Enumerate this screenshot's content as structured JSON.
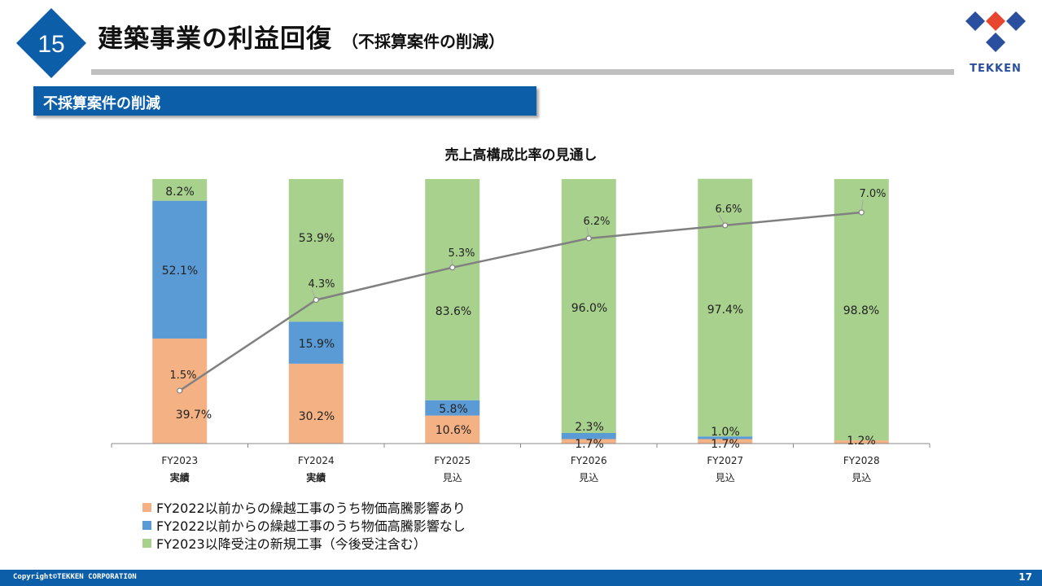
{
  "slide_number": "15",
  "title": "建築事業の利益回復",
  "subtitle": "（不採算案件の削減）",
  "logo_text": "TEKKEN",
  "section_label": "不採算案件の削減",
  "colors": {
    "brand_blue": "#0c5ea9",
    "series_orange": "#f4b183",
    "series_blue": "#5b9bd5",
    "series_green": "#a9d18e",
    "line_gray": "#808080"
  },
  "chart_data": {
    "type": "bar",
    "stacked": true,
    "title": "売上高構成比率の見通し",
    "categories": [
      "FY2023",
      "FY2024",
      "FY2025",
      "FY2026",
      "FY2027",
      "FY2028"
    ],
    "category_sublabels": [
      "実績",
      "実績",
      "見込",
      "見込",
      "見込",
      "見込"
    ],
    "series": [
      {
        "name": "FY2022以前からの繰越工事のうち物価高騰影響あり",
        "values": [
          39.7,
          30.2,
          10.6,
          1.7,
          1.7,
          1.2
        ],
        "labels": [
          "39.7%",
          "30.2%",
          "10.6%",
          "1.7%",
          "1.7%",
          "1.2%"
        ]
      },
      {
        "name": "FY2022以前からの繰越工事のうち物価高騰影響なし",
        "values": [
          52.1,
          15.9,
          5.8,
          2.3,
          1.0,
          0.0
        ],
        "labels": [
          "52.1%",
          "15.9%",
          "5.8%",
          "2.3%",
          "1.0%",
          ""
        ]
      },
      {
        "name": "FY2023以降受注の新規工事（今後受注含む）",
        "values": [
          8.2,
          53.9,
          83.6,
          96.0,
          97.4,
          98.8
        ],
        "labels": [
          "8.2%",
          "53.9%",
          "83.6%",
          "96.0%",
          "97.4%",
          "98.8%"
        ]
      }
    ],
    "line": {
      "values": [
        1.5,
        4.3,
        5.3,
        6.2,
        6.6,
        7.0
      ],
      "labels": [
        "1.5%",
        "4.3%",
        "5.3%",
        "6.2%",
        "6.6%",
        "7.0%"
      ]
    },
    "ylim": [
      0,
      100
    ],
    "grid": false,
    "legend_position": "bottom-left"
  },
  "copyright": "Copyright©TEKKEN CORPORATION",
  "page_number": "17"
}
